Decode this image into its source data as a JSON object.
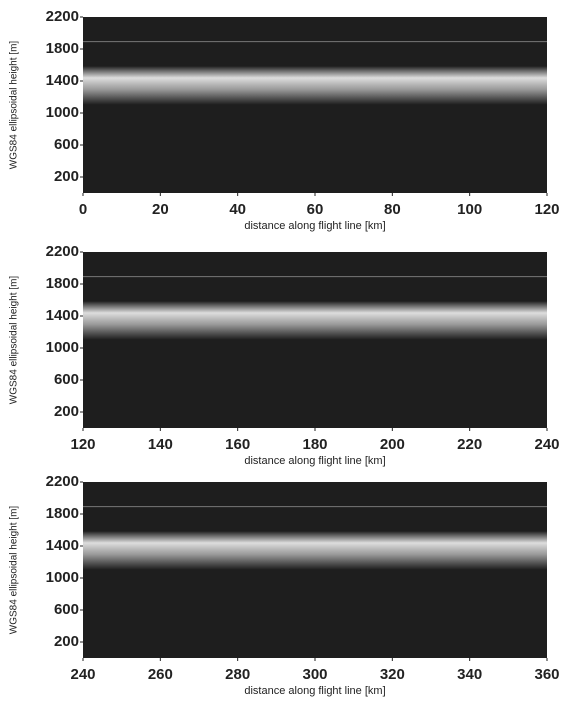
{
  "chart_data": [
    {
      "type": "radargram",
      "xlabel": "distance along flight line [km]",
      "ylabel": "WGS84 ellipsoidal height [m]",
      "xlim": [
        0,
        120
      ],
      "xticks": [
        0,
        20,
        40,
        60,
        80,
        100,
        120
      ],
      "ylim": [
        0,
        2200
      ],
      "yticks": [
        200,
        600,
        1000,
        1400,
        1800,
        2200
      ]
    },
    {
      "type": "radargram",
      "xlabel": "distance along flight line [km]",
      "ylabel": "WGS84 ellipsoidal height [m]",
      "xlim": [
        120,
        240
      ],
      "xticks": [
        120,
        140,
        160,
        180,
        200,
        220,
        240
      ],
      "ylim": [
        0,
        2200
      ],
      "yticks": [
        200,
        600,
        1000,
        1400,
        1800,
        2200
      ]
    },
    {
      "type": "radargram",
      "xlabel": "distance along flight line [km]",
      "ylabel": "WGS84 ellipsoidal height [m]",
      "xlim": [
        240,
        360
      ],
      "xticks": [
        240,
        260,
        280,
        300,
        320,
        340,
        360
      ],
      "ylim": [
        0,
        2200
      ],
      "yticks": [
        200,
        600,
        1000,
        1400,
        1800,
        2200
      ]
    }
  ]
}
